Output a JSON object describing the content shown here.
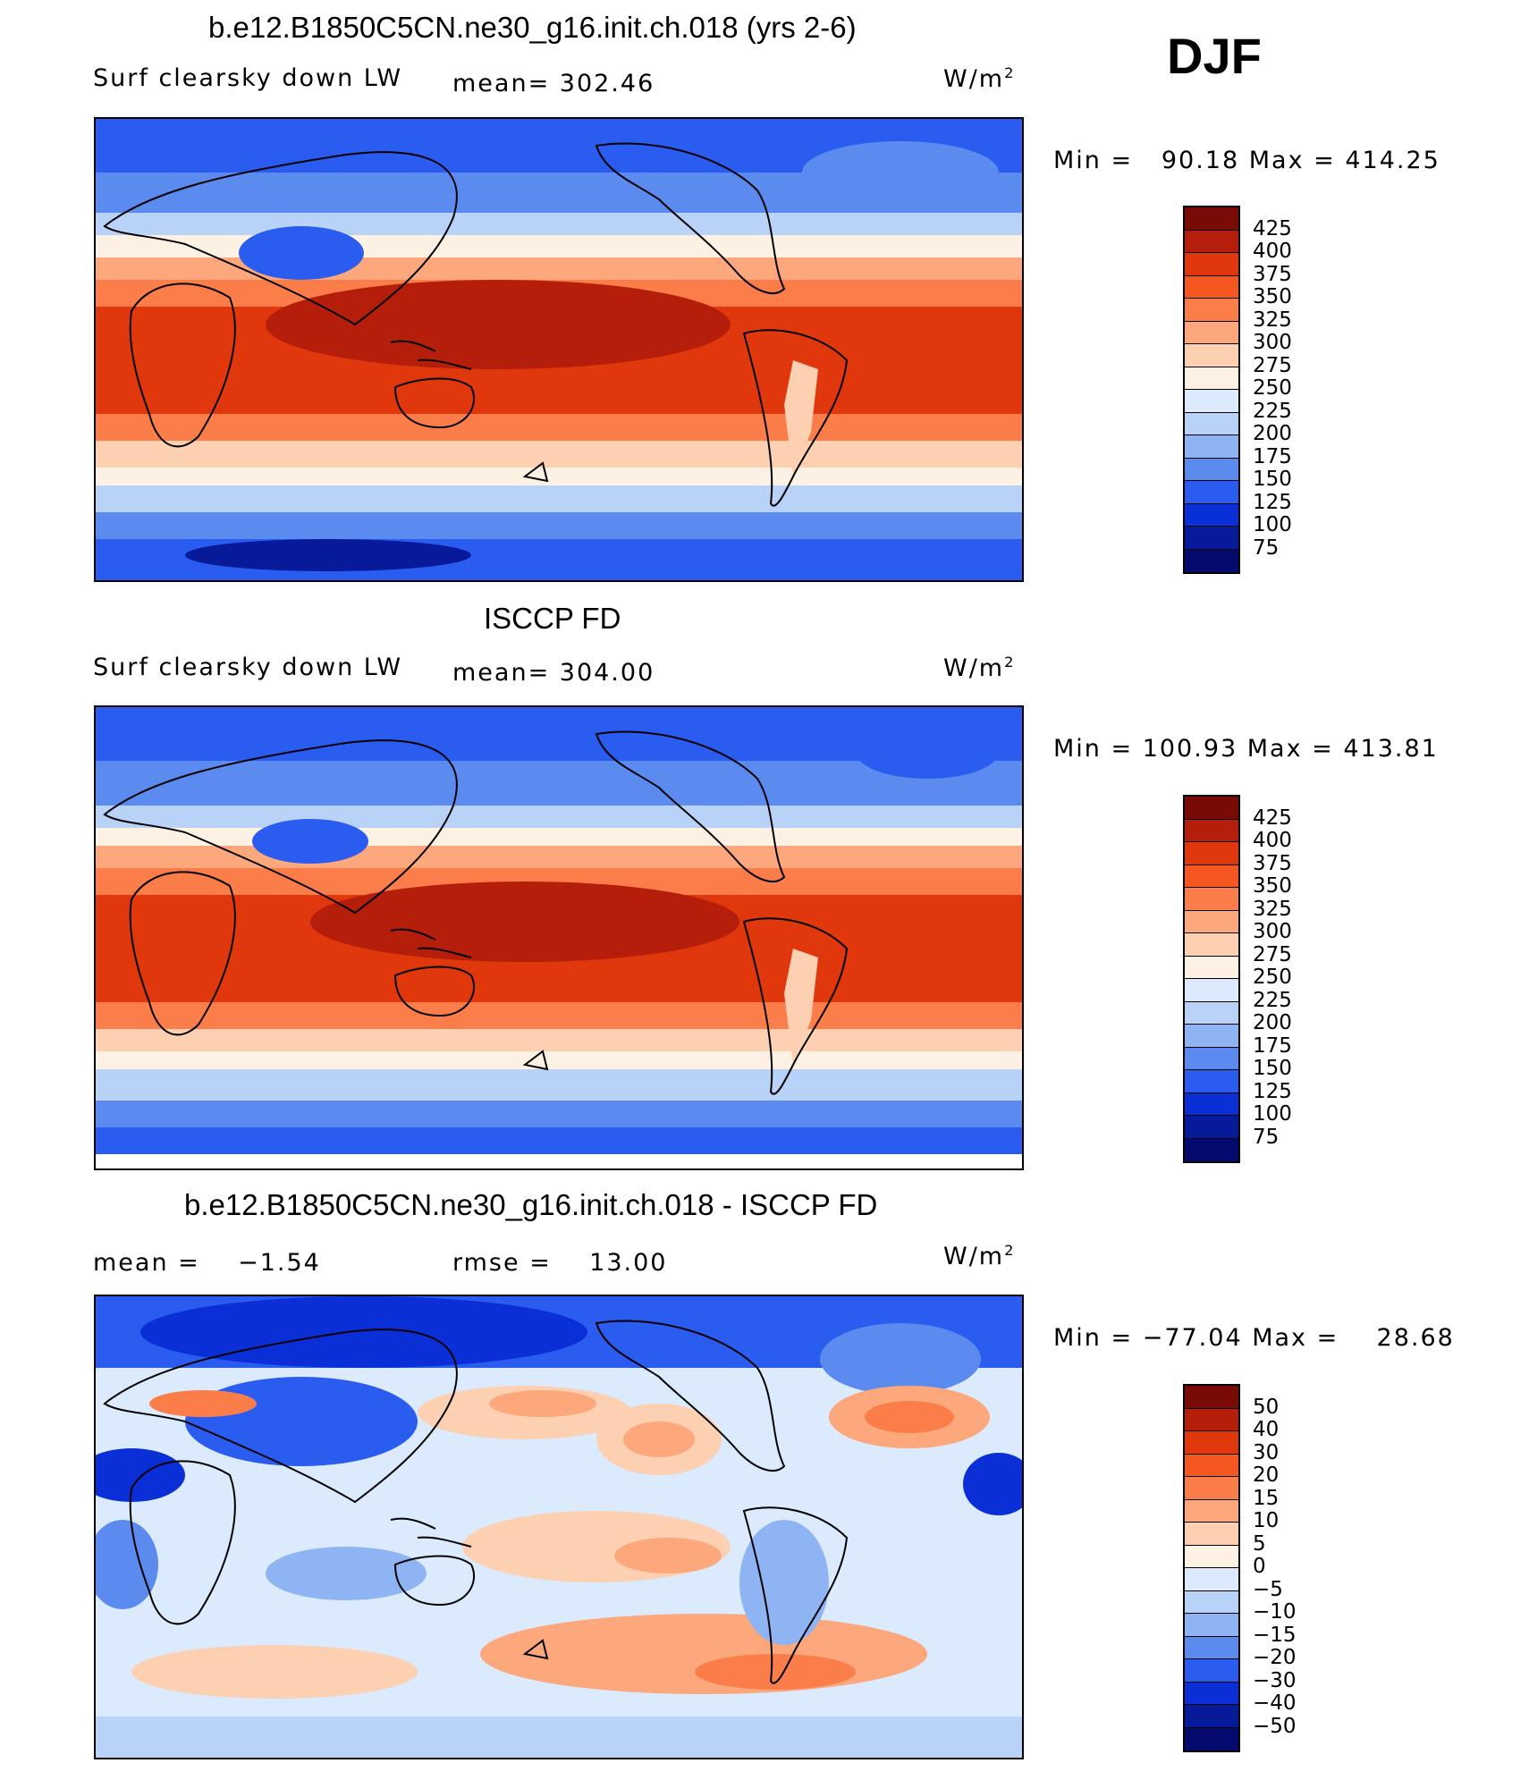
{
  "season": "DJF",
  "panels": [
    {
      "title": "b.e12.B1850C5CN.ne30_g16.init.ch.018 (yrs 2-6)",
      "left_label": "Surf clearsky down LW",
      "center_label": "mean= 302.46",
      "units": "W/m",
      "units_sup": "2",
      "minmax": "Min =   90.18 Max = 414.25",
      "colorbar": {
        "labels": [
          "425",
          "400",
          "375",
          "350",
          "325",
          "300",
          "275",
          "250",
          "225",
          "200",
          "175",
          "150",
          "125",
          "100",
          "75"
        ],
        "colors": [
          "#7a0a06",
          "#b51e0a",
          "#e0380c",
          "#f6561f",
          "#fb7d4a",
          "#fca77c",
          "#fdd0b2",
          "#fdf1e3",
          "#dbeafc",
          "#b9d2f8",
          "#8fb4f3",
          "#5c8bf0",
          "#2a5cf0",
          "#0b2fd6",
          "#071a9a",
          "#040a6e"
        ]
      }
    },
    {
      "title": "ISCCP FD",
      "left_label": "Surf clearsky down LW",
      "center_label": "mean= 304.00",
      "units": "W/m",
      "units_sup": "2",
      "minmax": "Min = 100.93 Max = 413.81",
      "colorbar": {
        "labels": [
          "425",
          "400",
          "375",
          "350",
          "325",
          "300",
          "275",
          "250",
          "225",
          "200",
          "175",
          "150",
          "125",
          "100",
          "75"
        ],
        "colors": [
          "#7a0a06",
          "#b51e0a",
          "#e0380c",
          "#f6561f",
          "#fb7d4a",
          "#fca77c",
          "#fdd0b2",
          "#fdf1e3",
          "#dbeafc",
          "#b9d2f8",
          "#8fb4f3",
          "#5c8bf0",
          "#2a5cf0",
          "#0b2fd6",
          "#071a9a",
          "#040a6e"
        ]
      }
    },
    {
      "title": "b.e12.B1850C5CN.ne30_g16.init.ch.018 - ISCCP FD",
      "left_label": "mean =    −1.54",
      "center_label": "rmse =    13.00",
      "units": "W/m",
      "units_sup": "2",
      "minmax": "Min = −77.04 Max =    28.68",
      "colorbar": {
        "labels": [
          "50",
          "40",
          "30",
          "20",
          "15",
          "10",
          "5",
          "0",
          "−5",
          "−10",
          "−15",
          "−20",
          "−30",
          "−40",
          "−50"
        ],
        "colors": [
          "#7a0a06",
          "#b51e0a",
          "#e0380c",
          "#f6561f",
          "#fb7d4a",
          "#fca77c",
          "#fdd0b2",
          "#fdf1e3",
          "#dbeafc",
          "#b9d2f8",
          "#8fb4f3",
          "#5c8bf0",
          "#2a5cf0",
          "#0b2fd6",
          "#071a9a",
          "#040a6e"
        ]
      }
    }
  ]
}
